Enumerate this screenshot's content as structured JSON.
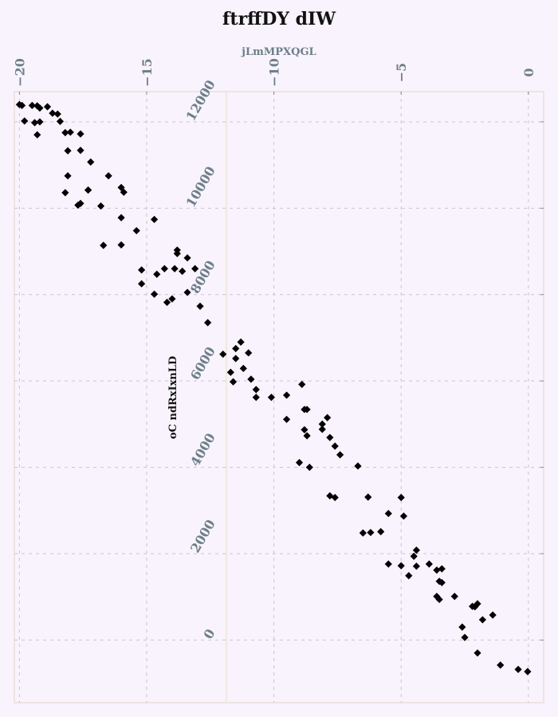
{
  "chart_data": {
    "type": "scatter",
    "title": "ftrffDY dIW",
    "xlabel": "jLmMPXQGL",
    "ylabel": "oC ndRxIxnLD",
    "xlim": [
      -20.2,
      0.6
    ],
    "ylim": [
      -1450,
      12700
    ],
    "xticks": [
      "−20",
      "−15",
      "−10",
      "−5",
      "0"
    ],
    "yticks": [
      "0",
      "2000",
      "4000",
      "6000",
      "8000",
      "10000",
      "12000"
    ],
    "grid": true,
    "marker": "diamond",
    "marker_color": "#000000",
    "x": [
      -20.0,
      -19.5,
      -19.3,
      -19.2,
      -18.9,
      -18.7,
      -19.9,
      -19.8,
      -19.2,
      -19.4,
      -19.3,
      -18.5,
      -18.4,
      -18.2,
      -18.0,
      -17.6,
      -18.1,
      -17.6,
      -17.2,
      -16.5,
      -18.1,
      -17.3,
      -16.0,
      -15.9,
      -17.6,
      -17.3,
      -18.2,
      -17.7,
      -16.8,
      -16.0,
      -14.7,
      -15.4,
      -16.7,
      -16.0,
      -13.8,
      -13.4,
      -13.8,
      -13.1,
      -14.6,
      -14.3,
      -13.9,
      -13.6,
      -15.2,
      -15.2,
      -14.7,
      -13.4,
      -14.0,
      -14.2,
      -12.9,
      -12.6,
      -11.3,
      -11.5,
      -11.0,
      -12.0,
      -11.7,
      -11.5,
      -11.2,
      -11.6,
      -10.7,
      -10.7,
      -10.9,
      -8.9,
      -9.5,
      -10.1,
      -8.8,
      -8.7,
      -9.5,
      -8.1,
      -7.9,
      -8.1,
      -8.8,
      -8.7,
      -7.8,
      -7.6,
      -7.4,
      -9.0,
      -8.6,
      -6.7,
      -7.8,
      -7.6,
      -6.3,
      -5.0,
      -4.9,
      -5.5,
      -6.5,
      -6.2,
      -5.8,
      -4.4,
      -4.5,
      -4.4,
      -3.9,
      -5.5,
      -5.0,
      -4.7,
      -3.6,
      -3.4,
      -3.5,
      -3.4,
      -3.6,
      -3.5,
      -2.9,
      -2.1,
      -2.2,
      -2.0,
      -1.4,
      -2.5,
      -1.8,
      -2.6,
      -2.0,
      -1.1,
      -0.4,
      -0.03
    ],
    "y": [
      12400,
      12380,
      12370,
      12320,
      12350,
      12200,
      12380,
      12020,
      12000,
      11980,
      11700,
      12180,
      12010,
      11750,
      11760,
      11720,
      11330,
      11340,
      11070,
      10750,
      10750,
      10420,
      10480,
      10370,
      10110,
      10420,
      10360,
      10070,
      10050,
      9780,
      9740,
      9480,
      9140,
      9150,
      9030,
      8850,
      8950,
      8600,
      8470,
      8600,
      8600,
      8540,
      8570,
      8250,
      8010,
      8050,
      7900,
      7820,
      7730,
      7350,
      6900,
      6750,
      6650,
      6620,
      6200,
      6520,
      6290,
      5980,
      5800,
      5620,
      6040,
      5920,
      5670,
      5620,
      5340,
      5340,
      5110,
      5000,
      5150,
      4880,
      4870,
      4730,
      4690,
      4490,
      4290,
      4110,
      4000,
      4030,
      3340,
      3300,
      3310,
      3300,
      2870,
      2930,
      2480,
      2490,
      2510,
      2080,
      1940,
      1710,
      1760,
      1760,
      1720,
      1490,
      1620,
      1650,
      1360,
      1330,
      1010,
      940,
      1010,
      770,
      780,
      840,
      580,
      60,
      470,
      300,
      -300,
      -580,
      -680,
      -730
    ]
  }
}
